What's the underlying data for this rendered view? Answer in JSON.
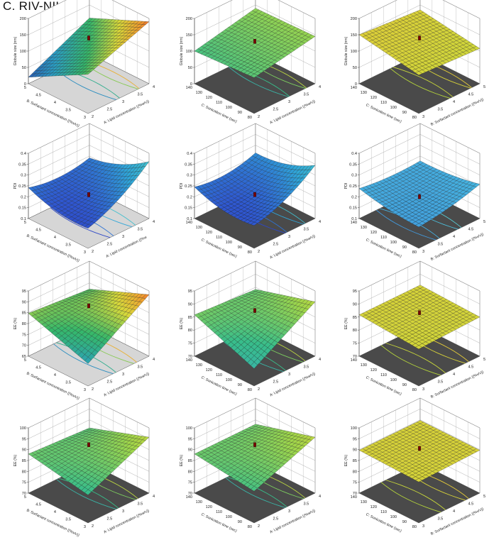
{
  "figure": {
    "title": "C. RIV-NIL NLC"
  },
  "chart_data": [
    {
      "type": "surface3d",
      "row": 0,
      "col": 0,
      "zlabel": "Globule size (nm)",
      "zlim": [
        0,
        200
      ],
      "zticks": [
        "0",
        "50",
        "100",
        "150",
        "200"
      ],
      "xlabel": "A: Lipid concentration ((%w/v))",
      "xticks": [
        "2",
        "2.5",
        "3",
        "3.5",
        "4"
      ],
      "ylabel": "B: Surfactant concentration ((%v/v))",
      "yticks": [
        "3",
        "3.5",
        "4",
        "4.5",
        "5"
      ],
      "surface_corners": {
        "near": 120,
        "left": 20,
        "right": 190,
        "back": 110
      },
      "curvature": 0,
      "design_point": 140,
      "floor": "light",
      "colormap": "rainbow",
      "contours": [
        0.4,
        0.58,
        0.76,
        0.9
      ]
    },
    {
      "type": "surface3d",
      "row": 0,
      "col": 1,
      "zlabel": "Globule size (nm)",
      "zlim": [
        0,
        200
      ],
      "zticks": [
        "0",
        "50",
        "100",
        "150",
        "200"
      ],
      "xlabel": "A: Lipid concentration ((%w/v))",
      "xticks": [
        "2",
        "2.5",
        "3",
        "3.5",
        "4"
      ],
      "ylabel": "C: Sonication time (sec)",
      "yticks": [
        "80",
        "90",
        "100",
        "110",
        "120",
        "130",
        "140"
      ],
      "surface_corners": {
        "near": 110,
        "left": 100,
        "right": 145,
        "back": 140
      },
      "curvature": 0,
      "design_point": 130,
      "floor": "dark",
      "colormap": "greenish",
      "contours": [
        0.5,
        0.64,
        0.78,
        0.92
      ]
    },
    {
      "type": "surface3d",
      "row": 0,
      "col": 2,
      "zlabel": "Globule size (nm)",
      "zlim": [
        0,
        200
      ],
      "zticks": [
        "0",
        "50",
        "100",
        "150",
        "200"
      ],
      "xlabel": "B: Surfactant concentration ((%v/v))",
      "xticks": [
        "3",
        "3.5",
        "4",
        "4.5",
        "5"
      ],
      "ylabel": "C: Sonication time (sec)",
      "yticks": [
        "80",
        "90",
        "100",
        "110",
        "120",
        "130",
        "140"
      ],
      "surface_corners": {
        "near": 118,
        "left": 150,
        "right": 108,
        "back": 135
      },
      "curvature": 0,
      "design_point": 140,
      "floor": "dark",
      "colormap": "yellow",
      "contours": [
        0.45,
        0.62,
        0.79,
        0.93
      ]
    },
    {
      "type": "surface3d",
      "row": 1,
      "col": 0,
      "zlabel": "PDI",
      "zlim": [
        0.1,
        0.4
      ],
      "zticks": [
        "0.1",
        "0.15",
        "0.2",
        "0.25",
        "0.3",
        "0.35",
        "0.4"
      ],
      "xlabel": "A: Lipid concentration ((%w",
      "xticks": [
        "2",
        "2.5",
        "3",
        "3.5",
        "4"
      ],
      "ylabel": "B: Surfactant concentration ((%v/v))",
      "yticks": [
        "3",
        "3.5",
        "4",
        "4.5",
        "5"
      ],
      "surface_corners": {
        "near": 0.15,
        "left": 0.2,
        "right": 0.32,
        "back": 0.2
      },
      "curvature": 0.14,
      "design_point": 0.21,
      "floor": "light",
      "colormap": "blue",
      "contours": [
        0.3,
        0.48,
        0.66,
        0.84
      ]
    },
    {
      "type": "surface3d",
      "row": 1,
      "col": 1,
      "zlabel": "PDI",
      "zlim": [
        0.1,
        0.4
      ],
      "zticks": [
        "0.1",
        "0.15",
        "0.2",
        "0.25",
        "0.3",
        "0.35",
        "0.4"
      ],
      "xlabel": "A: Lipid concentration ((%w/v))",
      "xticks": [
        "2",
        "2.5",
        "3",
        "3.5",
        "4"
      ],
      "ylabel": "C: Sonication time (sec)",
      "yticks": [
        "80",
        "90",
        "100",
        "110",
        "120",
        "130",
        "140"
      ],
      "surface_corners": {
        "near": 0.16,
        "left": 0.2,
        "right": 0.3,
        "back": 0.22
      },
      "curvature": 0.15,
      "design_point": 0.21,
      "floor": "dark",
      "colormap": "blue",
      "contours": [
        0.45,
        0.6,
        0.75,
        0.9
      ]
    },
    {
      "type": "surface3d",
      "row": 1,
      "col": 2,
      "zlabel": "PDI",
      "zlim": [
        0.1,
        0.4
      ],
      "zticks": [
        "0.1",
        "0.15",
        "0.2",
        "0.25",
        "0.3",
        "0.35",
        "0.4"
      ],
      "xlabel": "B: Surfactant concentration ((%v/v))",
      "xticks": [
        "3",
        "3.5",
        "4",
        "4.5",
        "5"
      ],
      "ylabel": "C: Sonication time (sec)",
      "yticks": [
        "80",
        "90",
        "100",
        "110",
        "120",
        "130",
        "140"
      ],
      "surface_corners": {
        "near": 0.18,
        "left": 0.22,
        "right": 0.24,
        "back": 0.21
      },
      "curvature": 0.06,
      "design_point": 0.2,
      "floor": "dark",
      "colormap": "cyan",
      "contours": [
        0.22,
        0.4,
        0.58,
        0.76
      ]
    },
    {
      "type": "surface3d",
      "row": 2,
      "col": 0,
      "zlabel": "EE (%)",
      "zlim": [
        60,
        95
      ],
      "zticks": [
        "65",
        "70",
        "75",
        "80",
        "85",
        "90",
        "95"
      ],
      "xlabel": "A: Lipid concentration ((%w/v))",
      "xticks": [
        "2",
        "2.5",
        "3",
        "3.5",
        "4"
      ],
      "ylabel": "B: Surfactant concentration ((%v/v))",
      "yticks": [
        "3",
        "3.5",
        "4",
        "4.5",
        "5"
      ],
      "surface_corners": {
        "near": 72,
        "left": 83,
        "right": 93,
        "back": 80
      },
      "curvature": 0,
      "design_point": 87,
      "floor": "light",
      "colormap": "rainbow",
      "contours": [
        0.35,
        0.52,
        0.69,
        0.86
      ]
    },
    {
      "type": "surface3d",
      "row": 2,
      "col": 1,
      "zlabel": "EE (%)",
      "zlim": [
        65,
        95
      ],
      "zticks": [
        "70",
        "75",
        "80",
        "85",
        "90",
        "95"
      ],
      "xlabel": "A: Lipid concentration ((%w/v))",
      "xticks": [
        "2",
        "2.5",
        "3",
        "3.5",
        "4"
      ],
      "ylabel": "C: Sonication time (sec)",
      "yticks": [
        "80",
        "90",
        "100",
        "110",
        "120",
        "130",
        "140"
      ],
      "surface_corners": {
        "near": 73,
        "left": 84,
        "right": 90,
        "back": 82
      },
      "curvature": 0,
      "design_point": 86,
      "floor": "dark",
      "colormap": "greenish",
      "contours": [
        0.42,
        0.58,
        0.74,
        0.9
      ]
    },
    {
      "type": "surface3d",
      "row": 2,
      "col": 2,
      "zlabel": "EE (%)",
      "zlim": [
        65,
        95
      ],
      "zticks": [
        "70",
        "75",
        "80",
        "85",
        "90",
        "95"
      ],
      "xlabel": "B: Surfactant concentration ((%v/v))",
      "xticks": [
        "3",
        "3.5",
        "4",
        "4.5",
        "5"
      ],
      "ylabel": "C: Sonication time (sec)",
      "yticks": [
        "80",
        "90",
        "100",
        "110",
        "120",
        "130",
        "140"
      ],
      "surface_corners": {
        "near": 82,
        "left": 84,
        "right": 83,
        "back": 84
      },
      "curvature": 0,
      "design_point": 85,
      "floor": "dark",
      "colormap": "yellow",
      "contours": [
        0.3,
        0.5,
        0.7,
        0.88
      ]
    },
    {
      "type": "surface3d",
      "row": 3,
      "col": 0,
      "zlabel": "EE (%)",
      "zlim": [
        65,
        100
      ],
      "zticks": [
        "70",
        "75",
        "80",
        "85",
        "90",
        "95",
        "100"
      ],
      "xlabel": "A: Lipid concentration ((%w/v))",
      "xticks": [
        "2",
        "2.5",
        "3",
        "3.5",
        "4"
      ],
      "ylabel": "B: Surfactant concentration ((%v/v))",
      "yticks": [
        "3",
        "3.5",
        "4",
        "4.5",
        "5"
      ],
      "surface_corners": {
        "near": 80,
        "left": 86,
        "right": 95,
        "back": 84
      },
      "curvature": 0,
      "design_point": 91,
      "floor": "dark",
      "colormap": "greenish",
      "contours": [
        0.4,
        0.56,
        0.72,
        0.88
      ]
    },
    {
      "type": "surface3d",
      "row": 3,
      "col": 1,
      "zlabel": "EE (%)",
      "zlim": [
        65,
        100
      ],
      "zticks": [
        "70",
        "75",
        "80",
        "85",
        "90",
        "95",
        "100"
      ],
      "xlabel": "A: Lipid concentration ((%w/v))",
      "xticks": [
        "2",
        "2.5",
        "3",
        "3.5",
        "4"
      ],
      "ylabel": "C: Sonication time (sec)",
      "yticks": [
        "80",
        "90",
        "100",
        "110",
        "120",
        "130",
        "140"
      ],
      "surface_corners": {
        "near": 82,
        "left": 86,
        "right": 95,
        "back": 86
      },
      "curvature": 0,
      "design_point": 91,
      "floor": "dark",
      "colormap": "greenish",
      "contours": [
        0.45,
        0.6,
        0.75,
        0.9
      ]
    },
    {
      "type": "surface3d",
      "row": 3,
      "col": 2,
      "zlabel": "EE (%)",
      "zlim": [
        65,
        100
      ],
      "zticks": [
        "70",
        "75",
        "80",
        "85",
        "90",
        "95",
        "100"
      ],
      "xlabel": "B: Surfactant concentration ((%v/v))",
      "xticks": [
        "3",
        "3.5",
        "4",
        "4.5",
        "5"
      ],
      "ylabel": "C: Sonication time (sec)",
      "yticks": [
        "80",
        "90",
        "100",
        "110",
        "120",
        "130",
        "140"
      ],
      "surface_corners": {
        "near": 87,
        "left": 88,
        "right": 88,
        "back": 88
      },
      "curvature": 0,
      "design_point": 89,
      "floor": "dark",
      "colormap": "yellow",
      "contours": [
        0.3,
        0.5,
        0.7,
        0.88
      ]
    }
  ]
}
